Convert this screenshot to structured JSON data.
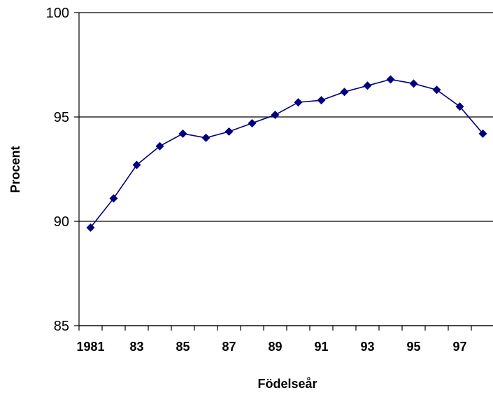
{
  "chart_data": {
    "type": "line",
    "title": "",
    "xlabel": "Födelseår",
    "ylabel": "Procent",
    "x": [
      1981,
      1982,
      1983,
      1984,
      1985,
      1986,
      1987,
      1988,
      1989,
      1990,
      1991,
      1992,
      1993,
      1994,
      1995,
      1996,
      1997,
      1998
    ],
    "series": [
      {
        "values": [
          89.7,
          91.1,
          92.7,
          93.6,
          94.2,
          94.0,
          94.3,
          94.7,
          95.1,
          95.7,
          95.8,
          96.2,
          96.5,
          96.8,
          96.6,
          96.3,
          95.5,
          94.2
        ],
        "color": "#000080",
        "marker": "diamond"
      }
    ],
    "xlim": [
      1980.5,
      1998.5
    ],
    "ylim": [
      85,
      100
    ],
    "yticks": [
      85,
      90,
      95,
      100
    ],
    "ytick_labels": [
      "85",
      "90",
      "95",
      "100"
    ],
    "xtick_labels": [
      {
        "x": 1981,
        "label": "1981"
      },
      {
        "x": 1983,
        "label": "83"
      },
      {
        "x": 1985,
        "label": "85"
      },
      {
        "x": 1987,
        "label": "87"
      },
      {
        "x": 1989,
        "label": "89"
      },
      {
        "x": 1991,
        "label": "91"
      },
      {
        "x": 1993,
        "label": "93"
      },
      {
        "x": 1995,
        "label": "95"
      },
      {
        "x": 1997,
        "label": "97"
      }
    ],
    "gridlines": "horizontal",
    "legend": "none"
  }
}
